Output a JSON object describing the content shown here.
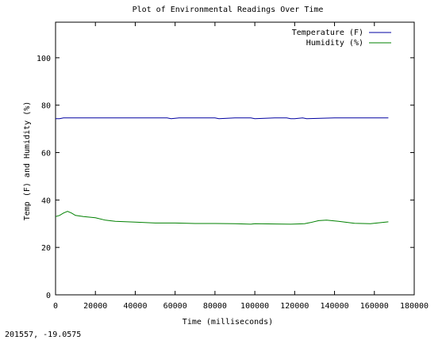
{
  "coord_readout": "201557, -19.0575",
  "colors": {
    "temperature": "#0000a0",
    "humidity": "#008000",
    "axes": "#000000"
  },
  "chart_data": {
    "type": "line",
    "title": "Plot of Environmental Readings Over Time",
    "xlabel": "Time (milliseconds)",
    "ylabel": "Temp (F) and Humidity (%)",
    "xlim": [
      0,
      180000
    ],
    "ylim": [
      0,
      115
    ],
    "x_ticks": [
      0,
      20000,
      40000,
      60000,
      80000,
      100000,
      120000,
      140000,
      160000,
      180000
    ],
    "x_tick_labels": [
      "0",
      "20000",
      "40000",
      "60000",
      "80000",
      "100000",
      "120000",
      "140000",
      "160000",
      "180000"
    ],
    "y_ticks": [
      0,
      20,
      40,
      60,
      80,
      100
    ],
    "y_tick_labels": [
      "0",
      "20",
      "40",
      "60",
      "80",
      "100"
    ],
    "grid": false,
    "legend_position": "top-right",
    "series": [
      {
        "name": "Temperature (F)",
        "color": "#0000a0",
        "x": [
          0,
          2000,
          4000,
          6000,
          20000,
          40000,
          56000,
          58000,
          62000,
          80000,
          82000,
          90000,
          98000,
          100000,
          110000,
          116000,
          118000,
          120000,
          124000,
          126000,
          140000,
          160000,
          167000
        ],
        "y": [
          74.3,
          74.3,
          74.6,
          74.6,
          74.6,
          74.6,
          74.6,
          74.3,
          74.6,
          74.6,
          74.3,
          74.6,
          74.6,
          74.3,
          74.6,
          74.6,
          74.3,
          74.3,
          74.6,
          74.3,
          74.6,
          74.6,
          74.6
        ]
      },
      {
        "name": "Humidity (%)",
        "color": "#008000",
        "x": [
          0,
          2000,
          4000,
          6000,
          8000,
          10000,
          14000,
          20000,
          25000,
          30000,
          40000,
          50000,
          60000,
          70000,
          80000,
          90000,
          98000,
          100000,
          110000,
          118000,
          125000,
          128000,
          132000,
          136000,
          142000,
          150000,
          158000,
          167000
        ],
        "y": [
          33,
          33.5,
          34.5,
          35.2,
          34.5,
          33.5,
          33,
          32.5,
          31.5,
          31,
          30.7,
          30.3,
          30.3,
          30.1,
          30.1,
          30,
          29.8,
          30,
          29.9,
          29.8,
          30,
          30.5,
          31.3,
          31.5,
          31.0,
          30.2,
          30.0,
          30.8
        ]
      }
    ]
  }
}
